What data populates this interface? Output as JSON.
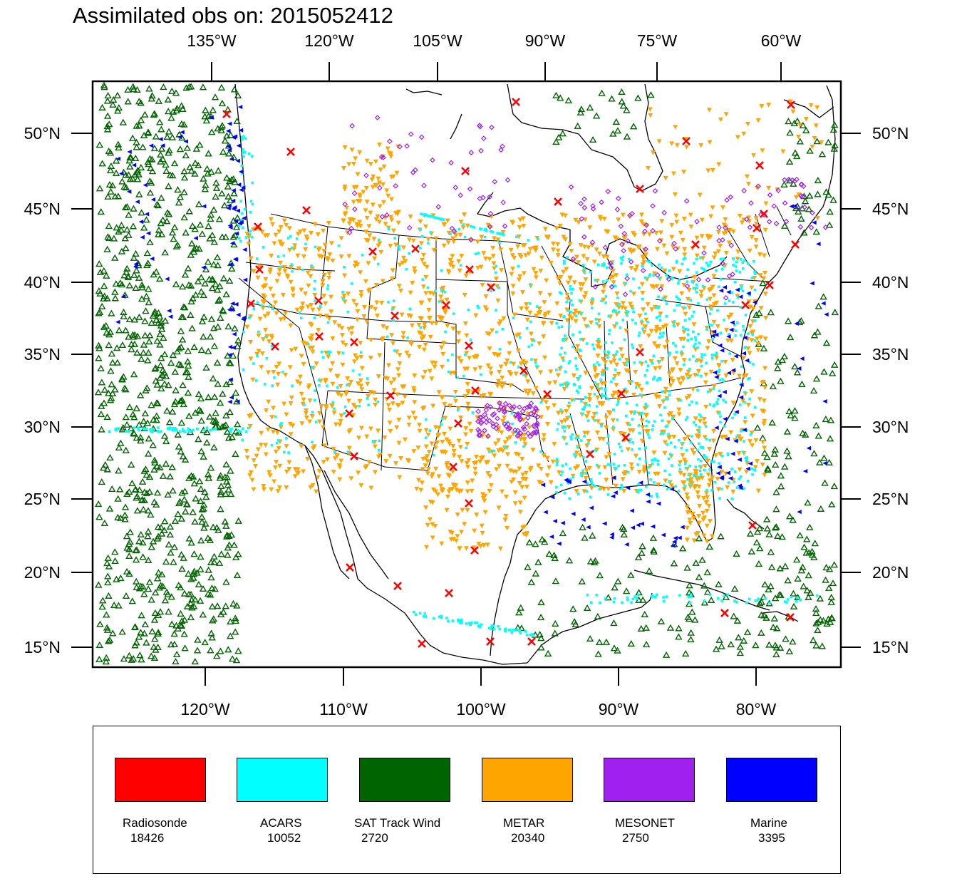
{
  "title": "Assimilated obs on: 2015052412",
  "top_axis": [
    "135°W",
    "120°W",
    "105°W",
    "90°W",
    "75°W",
    "60°W"
  ],
  "bottom_axis": [
    "120°W",
    "110°W",
    "100°W",
    "90°W",
    "80°W"
  ],
  "left_axis": [
    "50°N",
    "45°N",
    "40°N",
    "35°N",
    "30°N",
    "25°N",
    "20°N",
    "15°N"
  ],
  "right_axis": [
    "50°N",
    "45°N",
    "40°N",
    "35°N",
    "30°N",
    "25°N",
    "20°N",
    "15°N"
  ],
  "map_extent": {
    "lon_range": [
      -128,
      -74
    ],
    "lat_range": [
      14,
      54
    ]
  },
  "legend": [
    {
      "name": "Radiosonde",
      "count": "18426",
      "color": "#ff0000",
      "symbol": "x-marker"
    },
    {
      "name": "ACARS",
      "count": "10052",
      "color": "#00ffff",
      "symbol": "dot-marker"
    },
    {
      "name": "SAT Track Wind",
      "count": "2720",
      "color": "#006400",
      "symbol": "triangle-up-marker"
    },
    {
      "name": "METAR",
      "count": "20340",
      "color": "#ffa500",
      "symbol": "triangle-down-marker"
    },
    {
      "name": "MESONET",
      "count": "2750",
      "color": "#a020f0",
      "symbol": "diamond-marker"
    },
    {
      "name": "Marine",
      "count": "3395",
      "color": "#0000ff",
      "symbol": "triangle-left-marker"
    }
  ]
}
